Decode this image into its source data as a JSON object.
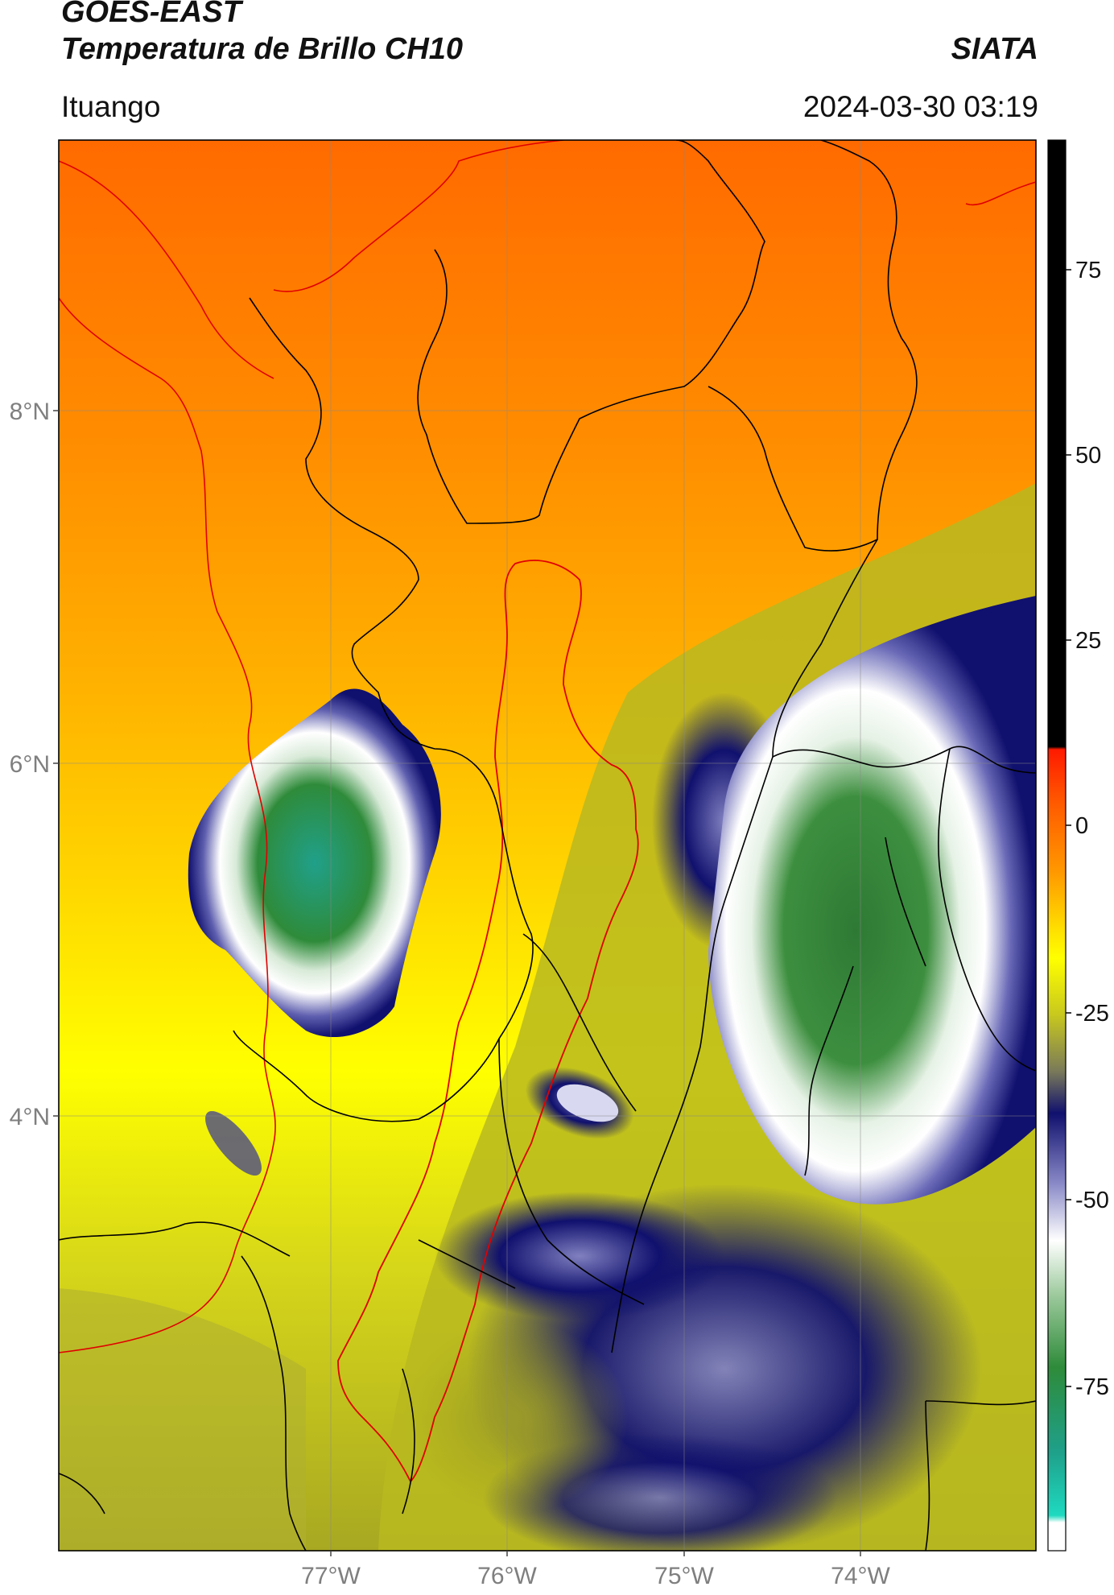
{
  "header": {
    "satellite": "GOES-EAST",
    "product": "Temperatura de Brillo CH10",
    "source": "SIATA",
    "region": "Ituango",
    "datetime": "2024-03-30 03:19"
  },
  "map": {
    "lat_labels": [
      "8°N",
      "6°N",
      "4°N"
    ],
    "lon_labels": [
      "77°W",
      "76°W",
      "75°W",
      "74°W"
    ]
  },
  "colorbar": {
    "ticks": [
      "75",
      "50",
      "25",
      "0",
      "-25",
      "-50",
      "-75"
    ],
    "colors": {
      "black": "#000000",
      "red": "#ff1a00",
      "orange": "#ff8a00",
      "yellow": "#ffff00",
      "olive": "#a6a61c",
      "navy": "#10106e",
      "white": "#ffffff",
      "green": "#2e8b3a",
      "teal": "#1fd9c0"
    }
  }
}
